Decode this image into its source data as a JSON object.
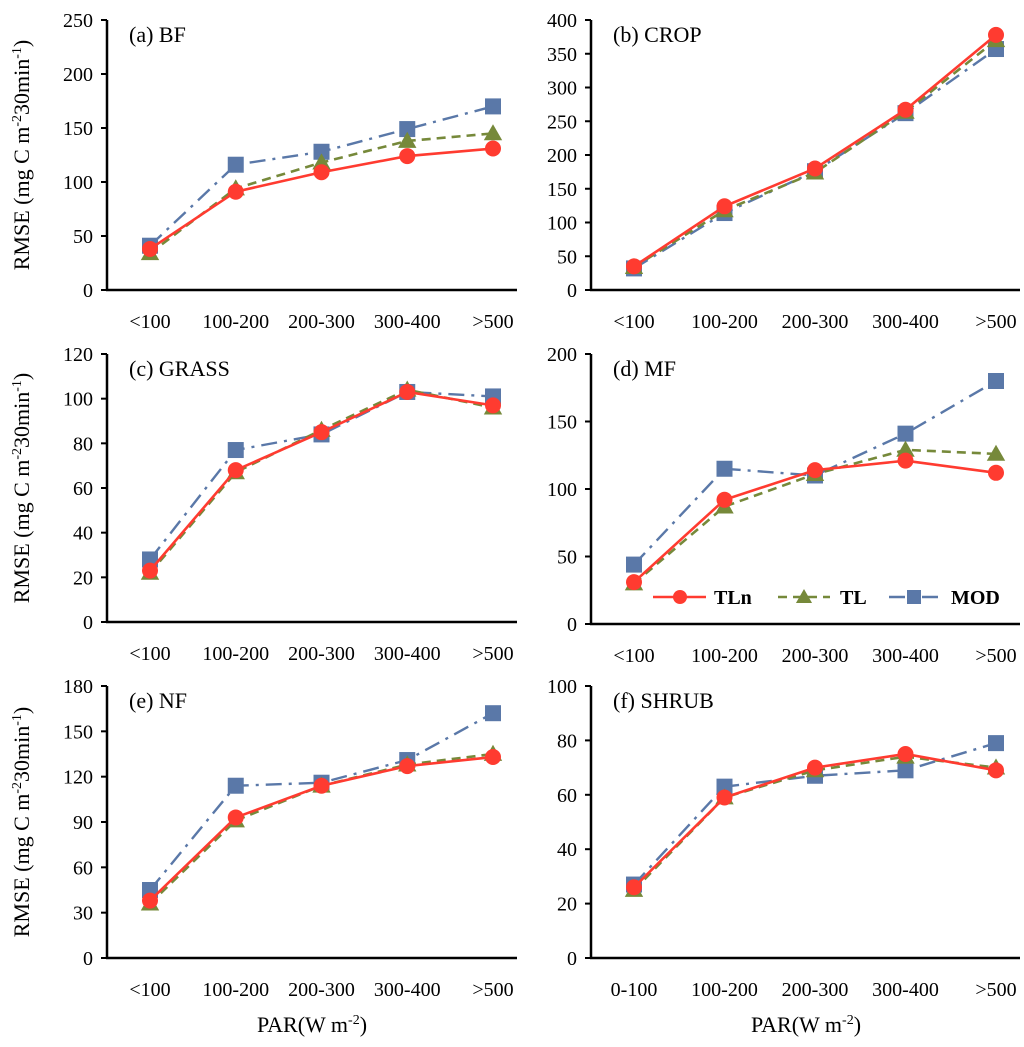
{
  "chart_data": {
    "type": "line",
    "ylabel": "RMSE (mg C m⁻² 30min⁻¹)",
    "ylabel_parts": [
      "RMSE (mg C m",
      "-2",
      "30min",
      "-1",
      ")"
    ],
    "xlabel": "PAR(W m⁻²)",
    "xlabel_parts": [
      "PAR(W m",
      "-2",
      ")"
    ],
    "legend": {
      "placement": "inside panel (d), bottom",
      "entries": [
        {
          "name": "TLn",
          "marker": "circle",
          "line": "solid",
          "color": "#ff3b30"
        },
        {
          "name": "TL",
          "marker": "triangle",
          "line": "dashed",
          "color": "#76893a"
        },
        {
          "name": "MOD",
          "marker": "square",
          "line": "dash-dot",
          "color": "#5a78a8"
        }
      ]
    },
    "panels": [
      {
        "id": "a",
        "title": "(a) BF",
        "categories": [
          "<100",
          "100-200",
          "200-300",
          "300-400",
          ">500"
        ],
        "ylim": [
          0,
          250
        ],
        "yticks": [
          0,
          50,
          100,
          150,
          200,
          250
        ],
        "series": [
          {
            "name": "TLn",
            "values": [
              38,
              91,
              109,
              124,
              131
            ]
          },
          {
            "name": "TL",
            "values": [
              34,
              94,
              118,
              138,
              145
            ]
          },
          {
            "name": "MOD",
            "values": [
              41,
              116,
              128,
              149,
              170
            ]
          }
        ]
      },
      {
        "id": "b",
        "title": "(b) CROP",
        "categories": [
          "<100",
          "100-200",
          "200-300",
          "300-400",
          ">500"
        ],
        "ylim": [
          0,
          400
        ],
        "yticks": [
          0,
          50,
          100,
          150,
          200,
          250,
          300,
          350,
          400
        ],
        "series": [
          {
            "name": "TLn",
            "values": [
              35,
              124,
              180,
              267,
              378
            ]
          },
          {
            "name": "TL",
            "values": [
              34,
              118,
              174,
              264,
              370
            ]
          },
          {
            "name": "MOD",
            "values": [
              32,
              114,
              176,
              262,
              357
            ]
          }
        ]
      },
      {
        "id": "c",
        "title": "(c) GRASS",
        "categories": [
          "<100",
          "100-200",
          "200-300",
          "300-400",
          ">500"
        ],
        "ylim": [
          0,
          120
        ],
        "yticks": [
          0,
          20,
          40,
          60,
          80,
          100,
          120
        ],
        "series": [
          {
            "name": "TLn",
            "values": [
              23,
              68,
              85,
              103,
              97
            ]
          },
          {
            "name": "TL",
            "values": [
              22,
              67,
              86,
              104,
              96
            ]
          },
          {
            "name": "MOD",
            "values": [
              28,
              77,
              84,
              103,
              101
            ]
          }
        ]
      },
      {
        "id": "d",
        "title": "(d) MF",
        "categories": [
          "<100",
          "100-200",
          "200-300",
          "300-400",
          ">500"
        ],
        "ylim": [
          0,
          200
        ],
        "yticks": [
          0,
          50,
          100,
          150,
          200
        ],
        "series": [
          {
            "name": "TLn",
            "values": [
              31,
              92,
              114,
              121,
              112
            ]
          },
          {
            "name": "TL",
            "values": [
              30,
              87,
              111,
              129,
              126
            ]
          },
          {
            "name": "MOD",
            "values": [
              44,
              115,
              110,
              141,
              180
            ]
          }
        ]
      },
      {
        "id": "e",
        "title": "(e) NF",
        "categories": [
          "<100",
          "100-200",
          "200-300",
          "300-400",
          ">500"
        ],
        "ylim": [
          0,
          180
        ],
        "yticks": [
          0,
          30,
          60,
          90,
          120,
          150,
          180
        ],
        "series": [
          {
            "name": "TLn",
            "values": [
              38,
              93,
              114,
              127,
              133
            ]
          },
          {
            "name": "TL",
            "values": [
              36,
              91,
              114,
              128,
              135
            ]
          },
          {
            "name": "MOD",
            "values": [
              45,
              114,
              116,
              131,
              162
            ]
          }
        ]
      },
      {
        "id": "f",
        "title": "(f) SHRUB",
        "categories": [
          "0-100",
          "100-200",
          "200-300",
          "300-400",
          ">500"
        ],
        "ylim": [
          0,
          100
        ],
        "yticks": [
          0,
          20,
          40,
          60,
          80,
          100
        ],
        "series": [
          {
            "name": "TLn",
            "values": [
              26,
              59,
              70,
              75,
              69
            ]
          },
          {
            "name": "TL",
            "values": [
              25,
              59,
              69,
              74,
              70
            ]
          },
          {
            "name": "MOD",
            "values": [
              27,
              63,
              67,
              69,
              79
            ]
          }
        ]
      }
    ]
  }
}
